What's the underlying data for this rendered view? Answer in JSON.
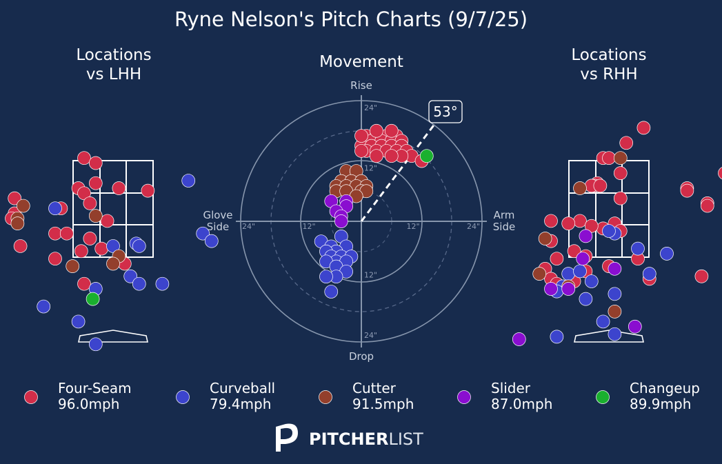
{
  "title": "Ryne Nelson's Pitch Charts (9/7/25)",
  "colors": {
    "background": "#172b4d",
    "Four-Seam": "#d22d49",
    "Curveball": "#3c44cd",
    "Cutter": "#933f2c",
    "Slider": "#8a0ed0",
    "Changeup": "#1ab02f"
  },
  "chart_data": [
    {
      "type": "scatter",
      "title": "Locations\nvs LHH",
      "series": [
        {
          "name": "Four-Seam",
          "points": [
            [
              -0.5,
              3.6
            ],
            [
              -0.3,
              3.5
            ],
            [
              -0.3,
              3.1
            ],
            [
              -0.6,
              3.0
            ],
            [
              -0.5,
              2.9
            ],
            [
              0.1,
              3.0
            ],
            [
              0.6,
              2.95
            ],
            [
              -1.7,
              2.8
            ],
            [
              -0.9,
              2.6
            ],
            [
              -0.4,
              2.7
            ],
            [
              -1.7,
              2.5
            ],
            [
              -1.75,
              2.4
            ],
            [
              -1.0,
              2.1
            ],
            [
              -0.8,
              2.1
            ],
            [
              -0.1,
              2.35
            ],
            [
              -0.4,
              2.0
            ],
            [
              -0.2,
              1.8
            ],
            [
              -0.55,
              1.75
            ],
            [
              -1.6,
              1.85
            ],
            [
              -1.0,
              1.6
            ],
            [
              0.2,
              1.5
            ],
            [
              -0.5,
              1.1
            ]
          ]
        },
        {
          "name": "Curveball",
          "points": [
            [
              1.3,
              3.15
            ],
            [
              -1.0,
              2.6
            ],
            [
              1.55,
              2.1
            ],
            [
              1.7,
              1.95
            ],
            [
              -0.0,
              1.85
            ],
            [
              0.4,
              1.9
            ],
            [
              0.45,
              1.85
            ],
            [
              0.3,
              1.25
            ],
            [
              0.45,
              1.1
            ],
            [
              0.85,
              1.1
            ],
            [
              -0.3,
              1.0
            ],
            [
              -1.2,
              0.65
            ],
            [
              -0.6,
              0.35
            ],
            [
              -0.3,
              -0.1
            ]
          ]
        },
        {
          "name": "Cutter",
          "points": [
            [
              -1.55,
              2.65
            ],
            [
              -0.3,
              2.45
            ],
            [
              -1.65,
              2.4
            ],
            [
              -1.65,
              2.3
            ],
            [
              0.1,
              1.65
            ],
            [
              0.0,
              1.5
            ],
            [
              -0.7,
              1.45
            ]
          ]
        },
        {
          "name": "Slider",
          "points": []
        },
        {
          "name": "Changeup",
          "points": [
            [
              -0.35,
              0.8
            ]
          ]
        }
      ]
    },
    {
      "type": "scatter",
      "title": "Movement",
      "axis_labels": {
        "top": "Rise",
        "bottom": "Drop",
        "left": "Glove\nSide",
        "right": "Arm\nSide"
      },
      "ring_labels": [
        "12\"",
        "24\""
      ],
      "arm_angle_label": "53°",
      "arm_angle_deg": 53,
      "series": [
        {
          "name": "Four-Seam",
          "points": [
            [
              1,
              17
            ],
            [
              3,
              17
            ],
            [
              5,
              17
            ],
            [
              7,
              17
            ],
            [
              2,
              16
            ],
            [
              4,
              16
            ],
            [
              6,
              16
            ],
            [
              8,
              16
            ],
            [
              0,
              15
            ],
            [
              2,
              15
            ],
            [
              4,
              15
            ],
            [
              6,
              15
            ],
            [
              8,
              15
            ],
            [
              1,
              14
            ],
            [
              3,
              14
            ],
            [
              5,
              14
            ],
            [
              7,
              14
            ],
            [
              9,
              14
            ],
            [
              0,
              17
            ],
            [
              3,
              18
            ],
            [
              6,
              18
            ],
            [
              10,
              13
            ],
            [
              8,
              13
            ],
            [
              6,
              13
            ],
            [
              3,
              13
            ],
            [
              0,
              14
            ],
            [
              12,
              12
            ]
          ]
        },
        {
          "name": "Curveball",
          "points": [
            [
              -8,
              -4
            ],
            [
              -6,
              -5
            ],
            [
              -4,
              -3
            ],
            [
              -3,
              -5
            ],
            [
              -5,
              -6
            ],
            [
              -7,
              -6
            ],
            [
              -6,
              -7
            ],
            [
              -4,
              -7
            ],
            [
              -2,
              -7
            ],
            [
              -5,
              -8
            ],
            [
              -3,
              -8
            ],
            [
              -7,
              -8
            ],
            [
              -5,
              -9
            ],
            [
              -3,
              -10
            ],
            [
              -5,
              -11
            ],
            [
              -7,
              -11
            ],
            [
              -6,
              -14
            ]
          ]
        },
        {
          "name": "Cutter",
          "points": [
            [
              -3,
              10
            ],
            [
              -1,
              10
            ],
            [
              -4,
              8
            ],
            [
              -2,
              8
            ],
            [
              0,
              8
            ],
            [
              -5,
              7
            ],
            [
              -3,
              7
            ],
            [
              -1,
              7
            ],
            [
              1,
              7
            ],
            [
              -5,
              6
            ],
            [
              -3,
              6
            ],
            [
              0,
              6
            ],
            [
              1,
              6
            ],
            [
              -1,
              5
            ]
          ]
        },
        {
          "name": "Slider",
          "points": [
            [
              -6,
              4
            ],
            [
              -3,
              4
            ],
            [
              -3,
              3
            ],
            [
              -5,
              2
            ],
            [
              -4,
              1
            ],
            [
              -4,
              0
            ]
          ]
        },
        {
          "name": "Changeup",
          "points": [
            [
              13,
              13
            ]
          ]
        }
      ]
    },
    {
      "type": "scatter",
      "title": "Locations\nvs RHH",
      "series": [
        {
          "name": "Four-Seam",
          "points": [
            [
              0.6,
              4.2
            ],
            [
              0.3,
              3.9
            ],
            [
              -0.1,
              3.6
            ],
            [
              0.0,
              3.6
            ],
            [
              2.0,
              3.3
            ],
            [
              0.2,
              3.3
            ],
            [
              -0.2,
              3.1
            ],
            [
              -0.25,
              3.05
            ],
            [
              -0.3,
              3.05
            ],
            [
              -0.15,
              3.05
            ],
            [
              1.35,
              3.0
            ],
            [
              1.35,
              2.95
            ],
            [
              1.7,
              2.7
            ],
            [
              1.7,
              2.65
            ],
            [
              0.2,
              2.8
            ],
            [
              -1.0,
              2.35
            ],
            [
              -0.5,
              2.35
            ],
            [
              -0.7,
              2.3
            ],
            [
              0.1,
              2.3
            ],
            [
              -0.1,
              2.2
            ],
            [
              -0.3,
              2.25
            ],
            [
              0.2,
              2.15
            ],
            [
              -1.0,
              1.95
            ],
            [
              -0.6,
              1.75
            ],
            [
              -0.4,
              1.65
            ],
            [
              0.5,
              1.6
            ],
            [
              -0.9,
              1.6
            ],
            [
              -1.1,
              1.4
            ],
            [
              0.0,
              1.45
            ],
            [
              -1.0,
              1.2
            ],
            [
              -0.9,
              1.1
            ],
            [
              -0.6,
              1.15
            ],
            [
              1.6,
              1.25
            ],
            [
              0.7,
              1.2
            ],
            [
              -0.4,
              1.35
            ]
          ]
        },
        {
          "name": "Curveball",
          "points": [
            [
              0.1,
              2.1
            ],
            [
              0.0,
              2.15
            ],
            [
              -0.7,
              1.3
            ],
            [
              -0.5,
              1.35
            ],
            [
              0.5,
              1.8
            ],
            [
              0.7,
              1.3
            ],
            [
              1.0,
              1.7
            ],
            [
              -0.8,
              1.05
            ],
            [
              -0.3,
              1.15
            ],
            [
              -0.9,
              0.95
            ],
            [
              0.1,
              0.9
            ],
            [
              -0.4,
              0.8
            ],
            [
              -0.1,
              0.35
            ],
            [
              0.1,
              0.1
            ],
            [
              -0.9,
              0.05
            ]
          ]
        },
        {
          "name": "Cutter",
          "points": [
            [
              0.2,
              3.6
            ],
            [
              -0.5,
              3.0
            ],
            [
              -1.1,
              2.0
            ],
            [
              -1.2,
              1.3
            ],
            [
              0.1,
              0.55
            ],
            [
              -0.7,
              1.05
            ]
          ]
        },
        {
          "name": "Slider",
          "points": [
            [
              -0.4,
              2.05
            ],
            [
              -0.45,
              1.6
            ],
            [
              0.1,
              1.4
            ],
            [
              0.45,
              0.25
            ],
            [
              -1.55,
              0.0
            ],
            [
              -1.0,
              1.0
            ],
            [
              -0.7,
              1.0
            ]
          ]
        },
        {
          "name": "Changeup",
          "points": []
        }
      ]
    }
  ],
  "legend": [
    {
      "name": "Four-Seam",
      "speed": "96.0mph"
    },
    {
      "name": "Curveball",
      "speed": "79.4mph"
    },
    {
      "name": "Cutter",
      "speed": "91.5mph"
    },
    {
      "name": "Slider",
      "speed": "87.0mph"
    },
    {
      "name": "Changeup",
      "speed": "89.9mph"
    }
  ],
  "brand": {
    "bold": "PITCHER",
    "light": "LIST"
  }
}
